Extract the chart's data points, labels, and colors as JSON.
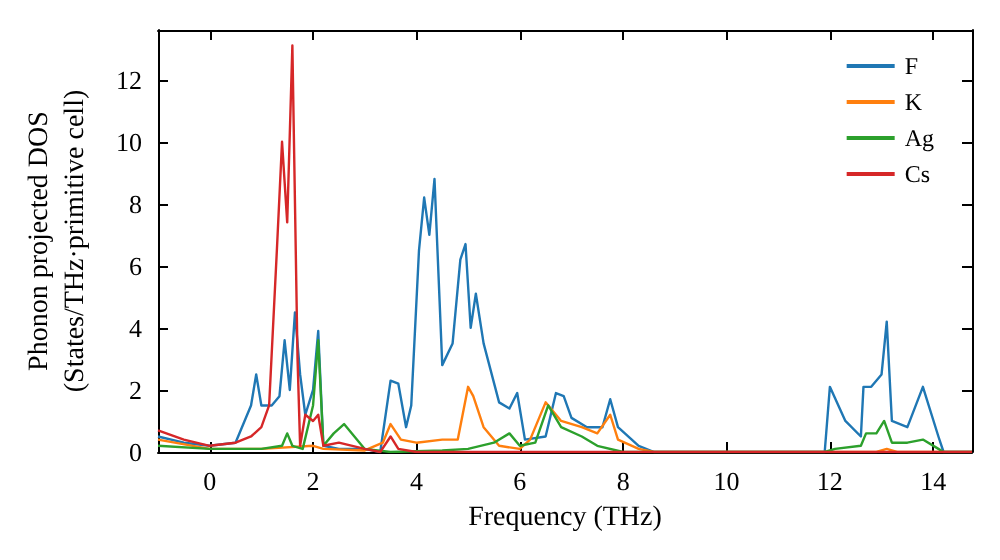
{
  "chart_data": {
    "type": "line",
    "xlabel": "Frequency (THz)",
    "ylabel": "Phonon projected DOS\n(States/THz·primitive cell)",
    "xlim": [
      -1,
      14.75
    ],
    "ylim": [
      0,
      13.6
    ],
    "xticks": [
      0,
      2,
      4,
      6,
      8,
      10,
      12,
      14
    ],
    "yticks": [
      0,
      2,
      4,
      6,
      8,
      10,
      12
    ],
    "legend": "top right",
    "grid": false,
    "marker": "none",
    "line_style": "solid",
    "series": [
      {
        "name": "F",
        "color": "#1f77b4",
        "x": [
          -1,
          -0.5,
          0,
          0.5,
          0.8,
          0.9,
          1.0,
          1.2,
          1.35,
          1.45,
          1.55,
          1.65,
          1.75,
          1.85,
          2.0,
          2.1,
          2.2,
          2.5,
          3.0,
          3.3,
          3.5,
          3.65,
          3.8,
          3.9,
          4.05,
          4.15,
          4.25,
          4.35,
          4.5,
          4.7,
          4.85,
          4.95,
          5.05,
          5.15,
          5.3,
          5.6,
          5.8,
          5.95,
          6.1,
          6.5,
          6.7,
          6.85,
          7.0,
          7.3,
          7.6,
          7.75,
          7.9,
          8.3,
          8.6,
          11.9,
          12.0,
          12.3,
          12.6,
          12.65,
          12.8,
          13.0,
          13.1,
          13.2,
          13.5,
          13.8,
          14.1,
          14.2,
          14.75
        ],
        "values": [
          0.5,
          0.3,
          0.2,
          0.3,
          1.5,
          2.5,
          1.5,
          1.5,
          1.8,
          3.6,
          2.0,
          4.5,
          2.5,
          1.2,
          2.0,
          3.9,
          0.2,
          0.1,
          0.1,
          0.0,
          2.3,
          2.2,
          0.8,
          1.5,
          6.5,
          8.2,
          7.0,
          8.8,
          2.8,
          3.5,
          6.2,
          6.7,
          4.0,
          5.1,
          3.5,
          1.6,
          1.4,
          1.9,
          0.4,
          0.5,
          1.9,
          1.8,
          1.1,
          0.8,
          0.8,
          1.7,
          0.8,
          0.2,
          0,
          0,
          2.1,
          1.0,
          0.5,
          2.1,
          2.1,
          2.5,
          4.2,
          1.0,
          0.8,
          2.1,
          0.5,
          0,
          0
        ]
      },
      {
        "name": "K",
        "color": "#ff7f0e",
        "x": [
          -1,
          0,
          1,
          2,
          2.2,
          3,
          3.35,
          3.5,
          3.7,
          4,
          4.5,
          4.8,
          5.0,
          5.1,
          5.3,
          5.6,
          6.0,
          6.2,
          6.5,
          6.8,
          7.2,
          7.5,
          7.75,
          7.9,
          8.3,
          8.6,
          12.9,
          13.1,
          13.3,
          14.75
        ],
        "values": [
          0.4,
          0.1,
          0.1,
          0.2,
          0.1,
          0.05,
          0.3,
          0.9,
          0.4,
          0.3,
          0.4,
          0.4,
          2.1,
          1.8,
          0.8,
          0.2,
          0.1,
          0.4,
          1.6,
          1.0,
          0.8,
          0.6,
          1.2,
          0.4,
          0.1,
          0,
          0,
          0.1,
          0,
          0
        ]
      },
      {
        "name": "Ag",
        "color": "#2ca02c",
        "x": [
          -1,
          0,
          1,
          1.4,
          1.5,
          1.6,
          1.8,
          2.0,
          2.1,
          2.2,
          2.4,
          2.6,
          2.8,
          3.0,
          3.5,
          4.5,
          5.0,
          5.5,
          5.8,
          6.0,
          6.3,
          6.55,
          6.8,
          7.2,
          7.5,
          8.0,
          11.9,
          12.1,
          12.6,
          12.7,
          12.9,
          13.05,
          13.2,
          13.5,
          13.8,
          14.1,
          14.2,
          14.75
        ],
        "values": [
          0.2,
          0.1,
          0.1,
          0.2,
          0.6,
          0.2,
          0.1,
          1.5,
          3.6,
          0.2,
          0.6,
          0.9,
          0.5,
          0.1,
          0,
          0.05,
          0.1,
          0.3,
          0.6,
          0.2,
          0.3,
          1.5,
          0.8,
          0.5,
          0.2,
          0,
          0,
          0.1,
          0.2,
          0.6,
          0.6,
          1.0,
          0.3,
          0.3,
          0.4,
          0.1,
          0,
          0
        ]
      },
      {
        "name": "Cs",
        "color": "#d62728",
        "x": [
          -1,
          -0.5,
          0,
          0.5,
          0.8,
          1.0,
          1.15,
          1.3,
          1.4,
          1.5,
          1.6,
          1.7,
          1.75,
          1.85,
          2.0,
          2.1,
          2.2,
          2.5,
          3.0,
          3.3,
          3.5,
          3.65,
          4.0,
          14.75
        ],
        "values": [
          0.7,
          0.4,
          0.2,
          0.3,
          0.5,
          0.8,
          1.5,
          6.5,
          10.0,
          7.4,
          13.1,
          3.0,
          0.2,
          1.2,
          1.0,
          1.2,
          0.2,
          0.3,
          0.1,
          0,
          0.5,
          0.1,
          0,
          0
        ]
      }
    ]
  }
}
